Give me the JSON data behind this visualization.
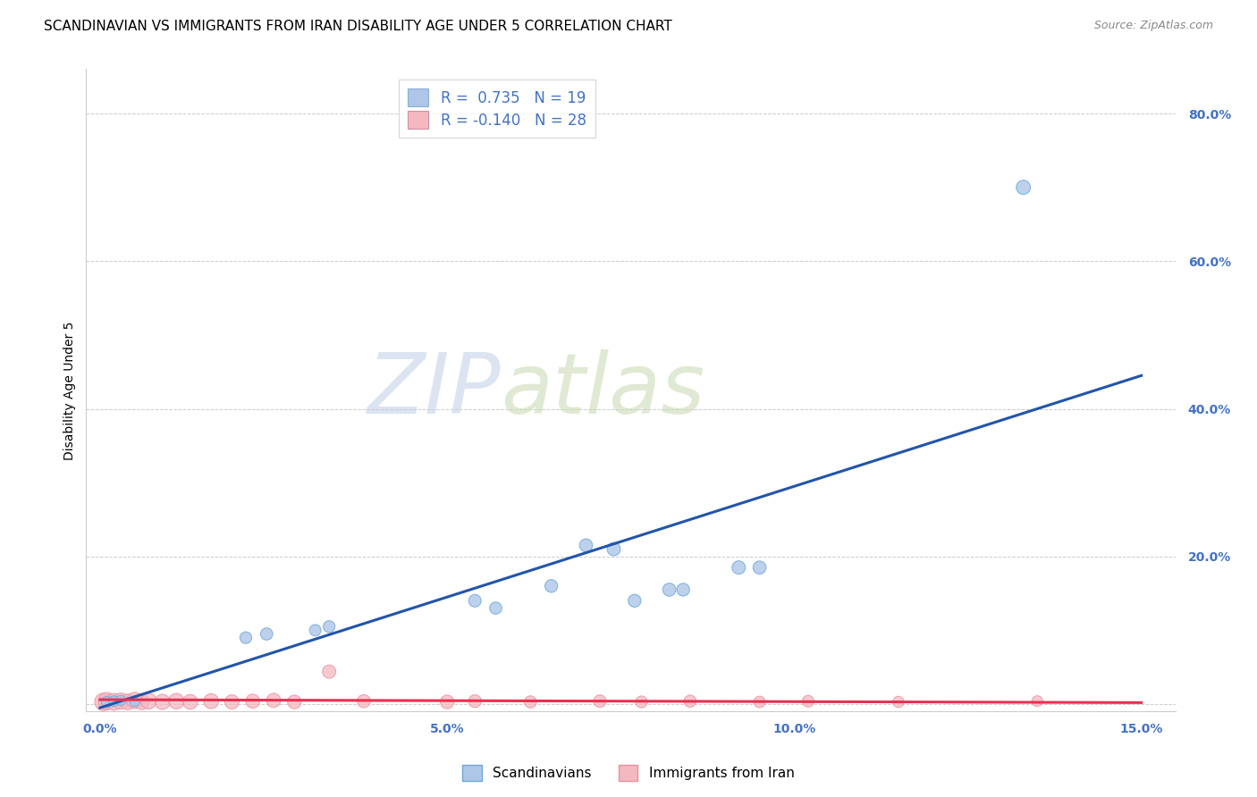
{
  "title": "SCANDINAVIAN VS IMMIGRANTS FROM IRAN DISABILITY AGE UNDER 5 CORRELATION CHART",
  "source": "Source: ZipAtlas.com",
  "ylabel": "Disability Age Under 5",
  "xlabel": "",
  "xlim": [
    -0.002,
    0.155
  ],
  "ylim": [
    -0.01,
    0.86
  ],
  "yticks": [
    0.0,
    0.2,
    0.4,
    0.6,
    0.8
  ],
  "ytick_labels": [
    "",
    "20.0%",
    "40.0%",
    "60.0%",
    "80.0%"
  ],
  "xticks": [
    0.0,
    0.05,
    0.1,
    0.15
  ],
  "xtick_labels": [
    "0.0%",
    "5.0%",
    "10.0%",
    "15.0%"
  ],
  "watermark_zip": "ZIP",
  "watermark_atlas": "atlas",
  "legend_entries": [
    {
      "label_r": "R = ",
      "label_rv": " 0.735",
      "label_n": "   N = ",
      "label_nv": "19",
      "color": "#aec6e8"
    },
    {
      "label_r": "R = ",
      "label_rv": "-0.140",
      "label_n": "   N = ",
      "label_nv": "28",
      "color": "#f4b8c1"
    }
  ],
  "sc_line_x": [
    0.0,
    0.15
  ],
  "sc_line_y": [
    -0.005,
    0.445
  ],
  "ir_line_x": [
    0.0,
    0.15
  ],
  "ir_line_y": [
    0.006,
    0.002
  ],
  "scandinavians": {
    "color": "#aec6e8",
    "edge_color": "#6fa8d8",
    "line_color": "#2255aa",
    "x": [
      0.001,
      0.002,
      0.003,
      0.005,
      0.021,
      0.024,
      0.031,
      0.033,
      0.054,
      0.057,
      0.065,
      0.07,
      0.074,
      0.077,
      0.082,
      0.084,
      0.092,
      0.095,
      0.133
    ],
    "y": [
      0.003,
      0.004,
      0.005,
      0.003,
      0.09,
      0.095,
      0.1,
      0.105,
      0.14,
      0.13,
      0.16,
      0.215,
      0.21,
      0.14,
      0.155,
      0.155,
      0.185,
      0.185,
      0.7
    ],
    "sizes": [
      80,
      70,
      65,
      60,
      90,
      95,
      85,
      90,
      100,
      95,
      105,
      110,
      115,
      105,
      110,
      105,
      115,
      110,
      130
    ]
  },
  "iran": {
    "color": "#f4b8c1",
    "edge_color": "#e890a0",
    "line_color": "#e83050",
    "x": [
      0.0005,
      0.001,
      0.002,
      0.003,
      0.004,
      0.005,
      0.006,
      0.007,
      0.009,
      0.011,
      0.013,
      0.016,
      0.019,
      0.022,
      0.025,
      0.028,
      0.033,
      0.038,
      0.05,
      0.054,
      0.062,
      0.072,
      0.078,
      0.085,
      0.095,
      0.102,
      0.115,
      0.135
    ],
    "y": [
      0.003,
      0.004,
      0.003,
      0.004,
      0.003,
      0.005,
      0.003,
      0.004,
      0.003,
      0.004,
      0.003,
      0.004,
      0.003,
      0.004,
      0.005,
      0.003,
      0.044,
      0.004,
      0.003,
      0.004,
      0.003,
      0.004,
      0.003,
      0.004,
      0.003,
      0.004,
      0.003,
      0.004
    ],
    "sizes": [
      200,
      190,
      180,
      170,
      160,
      170,
      155,
      160,
      150,
      155,
      140,
      145,
      130,
      125,
      130,
      120,
      115,
      110,
      120,
      105,
      95,
      100,
      90,
      95,
      85,
      88,
      80,
      75
    ]
  },
  "title_fontsize": 11,
  "axis_label_fontsize": 10,
  "tick_fontsize": 10,
  "tick_color": "#4472c4",
  "background_color": "#ffffff",
  "grid_color": "#cccccc"
}
